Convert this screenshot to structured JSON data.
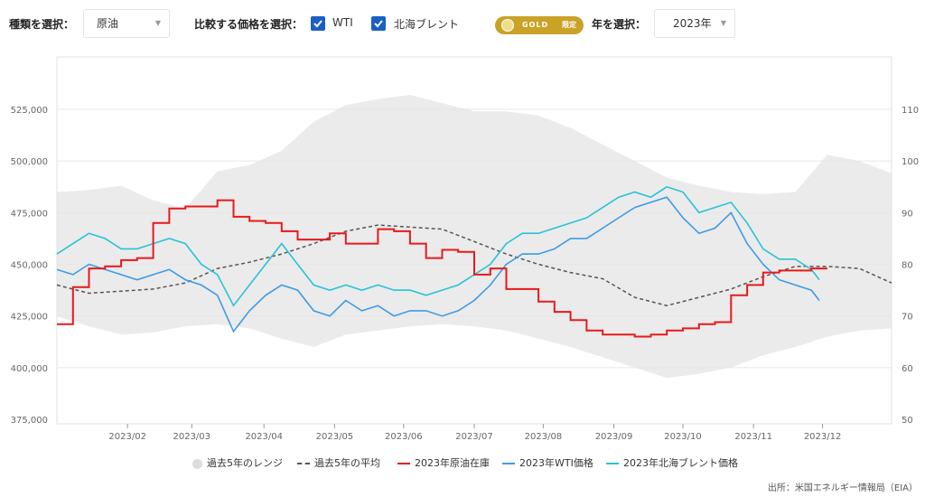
{
  "controls": {
    "type_label": "種類を選択：",
    "type_value": "原油",
    "compare_label": "比較する価格を選択：",
    "wti_label": "WTI",
    "brent_label": "北海ブレント",
    "gold_badge": "GOLD",
    "gold_badge_sub": "限定",
    "year_label": "年を選択：",
    "year_value": "2023年"
  },
  "source": "出所：米国エネルギー情報局（EIA）",
  "colors": {
    "range": "#ebebeb",
    "avg": "#555555",
    "inventory": "#e8191a",
    "wti": "#3d9be9",
    "brent": "#29c3d6",
    "checkbox": "#1a5fc4",
    "gold": "#c9a227"
  },
  "chart_data": {
    "type": "line",
    "x_range": [
      "2023-01-01",
      "2023-12-31"
    ],
    "x_ticks": [
      "2023/02",
      "2023/03",
      "2023/04",
      "2023/05",
      "2023/06",
      "2023/07",
      "2023/08",
      "2023/09",
      "2023/10",
      "2023/11",
      "2023/12"
    ],
    "x_tick_weeks": [
      4.4,
      8.4,
      12.9,
      17.3,
      21.6,
      26.0,
      30.3,
      34.7,
      39.0,
      43.4,
      47.7
    ],
    "y_left_range": [
      375000,
      525000
    ],
    "y_left_ticks": [
      "375,000",
      "400,000",
      "425,000",
      "450,000",
      "475,000",
      "500,000",
      "525,000"
    ],
    "y_left_tick_values": [
      375000,
      400000,
      425000,
      450000,
      475000,
      500000,
      525000
    ],
    "y_right_range": [
      50,
      110
    ],
    "y_right_ticks": [
      "50",
      "60",
      "70",
      "80",
      "90",
      "100",
      "110"
    ],
    "y_right_tick_values": [
      50,
      60,
      70,
      80,
      90,
      100,
      110
    ],
    "grid": true,
    "legend": [
      {
        "label": "過去5年のレンジ",
        "key": "range"
      },
      {
        "label": "過去5年の平均",
        "key": "avg"
      },
      {
        "label": "2023年原油在庫",
        "key": "inventory"
      },
      {
        "label": "2023年WTI価格",
        "key": "wti"
      },
      {
        "label": "2023年北海ブレント価格",
        "key": "brent"
      }
    ],
    "series": [
      {
        "key": "range",
        "axis": "left",
        "kind": "band",
        "x": [
          0,
          2,
          4,
          6,
          8,
          10,
          12,
          14,
          16,
          18,
          20,
          22,
          24,
          26,
          28,
          30,
          32,
          34,
          36,
          38,
          40,
          42,
          44,
          46,
          48,
          50,
          52
        ],
        "low": [
          425000,
          420000,
          416000,
          417000,
          420000,
          421000,
          419000,
          414000,
          410000,
          416000,
          418000,
          420000,
          421000,
          420000,
          418000,
          414000,
          410000,
          405000,
          400000,
          395000,
          397000,
          400000,
          406000,
          410000,
          415000,
          418000,
          419000
        ],
        "high": [
          485000,
          486000,
          488000,
          481000,
          477000,
          495000,
          498000,
          505000,
          519000,
          527000,
          530000,
          532000,
          528000,
          524000,
          524000,
          522000,
          516000,
          508000,
          500000,
          492000,
          488000,
          485000,
          484000,
          485000,
          503000,
          500000,
          494000
        ]
      },
      {
        "key": "avg",
        "axis": "left",
        "kind": "line",
        "x": [
          0,
          2,
          4,
          6,
          8,
          10,
          12,
          14,
          16,
          18,
          20,
          22,
          24,
          26,
          28,
          30,
          32,
          34,
          36,
          38,
          40,
          42,
          44,
          46,
          48,
          50,
          52
        ],
        "values": [
          440000,
          436000,
          437000,
          438000,
          441000,
          448000,
          451000,
          455000,
          460000,
          466000,
          469000,
          468000,
          467000,
          461000,
          455000,
          450000,
          446000,
          443000,
          434000,
          430000,
          434000,
          438000,
          444000,
          449000,
          449000,
          448000,
          441000
        ]
      },
      {
        "key": "inventory",
        "axis": "left",
        "kind": "step",
        "x": [
          0,
          1,
          2,
          3,
          4,
          5,
          6,
          7,
          8,
          9,
          10,
          11,
          12,
          13,
          14,
          15,
          16,
          17,
          18,
          19,
          20,
          21,
          22,
          23,
          24,
          25,
          26,
          27,
          28,
          29,
          30,
          31,
          32,
          33,
          34,
          35,
          36,
          37,
          38,
          39,
          40,
          41,
          42,
          43,
          44,
          45,
          46,
          47,
          48
        ],
        "values": [
          421000,
          439000,
          448000,
          449000,
          452000,
          453000,
          470000,
          477000,
          478000,
          478000,
          481000,
          473000,
          471000,
          470000,
          466000,
          462000,
          462000,
          465000,
          460000,
          460000,
          467000,
          466000,
          460000,
          453000,
          457000,
          456000,
          445000,
          448000,
          438000,
          438000,
          432000,
          427000,
          423000,
          418000,
          416000,
          416000,
          415000,
          416000,
          418000,
          419000,
          421000,
          422000,
          435000,
          440000,
          446000,
          447000,
          447000,
          448000,
          448000
        ]
      },
      {
        "key": "wti",
        "axis": "right",
        "kind": "line",
        "x": [
          0,
          1,
          2,
          3,
          4,
          5,
          6,
          7,
          8,
          9,
          10,
          11,
          12,
          13,
          14,
          15,
          16,
          17,
          18,
          19,
          20,
          21,
          22,
          23,
          24,
          25,
          26,
          27,
          28,
          29,
          30,
          31,
          32,
          33,
          34,
          35,
          36,
          37,
          38,
          39,
          40,
          41,
          42,
          43,
          44,
          45,
          46,
          47,
          47.5
        ],
        "values": [
          79,
          78,
          80,
          79,
          78,
          77,
          78,
          79,
          77,
          76,
          74,
          67,
          71,
          74,
          76,
          75,
          71,
          70,
          73,
          71,
          72,
          70,
          71,
          71,
          70,
          71,
          73,
          76,
          80,
          82,
          82,
          83,
          85,
          85,
          87,
          89,
          91,
          92,
          93,
          89,
          86,
          87,
          90,
          84,
          80,
          77,
          76,
          75,
          73
        ]
      },
      {
        "key": "brent",
        "axis": "right",
        "kind": "line",
        "x": [
          0,
          1,
          2,
          3,
          4,
          5,
          6,
          7,
          8,
          9,
          10,
          11,
          12,
          13,
          14,
          15,
          16,
          17,
          18,
          19,
          20,
          21,
          22,
          23,
          24,
          25,
          26,
          27,
          28,
          29,
          30,
          31,
          32,
          33,
          34,
          35,
          36,
          37,
          38,
          39,
          40,
          41,
          42,
          43,
          44,
          45,
          46,
          47,
          47.5
        ],
        "values": [
          82,
          84,
          86,
          85,
          83,
          83,
          84,
          85,
          84,
          80,
          78,
          72,
          76,
          80,
          84,
          80,
          76,
          75,
          76,
          75,
          76,
          75,
          75,
          74,
          75,
          76,
          78,
          80,
          84,
          86,
          86,
          87,
          88,
          89,
          91,
          93,
          94,
          93,
          95,
          94,
          90,
          91,
          92,
          88,
          83,
          81,
          81,
          79,
          77
        ]
      }
    ],
    "source": "出所：米国エネルギー情報局（EIA）"
  }
}
